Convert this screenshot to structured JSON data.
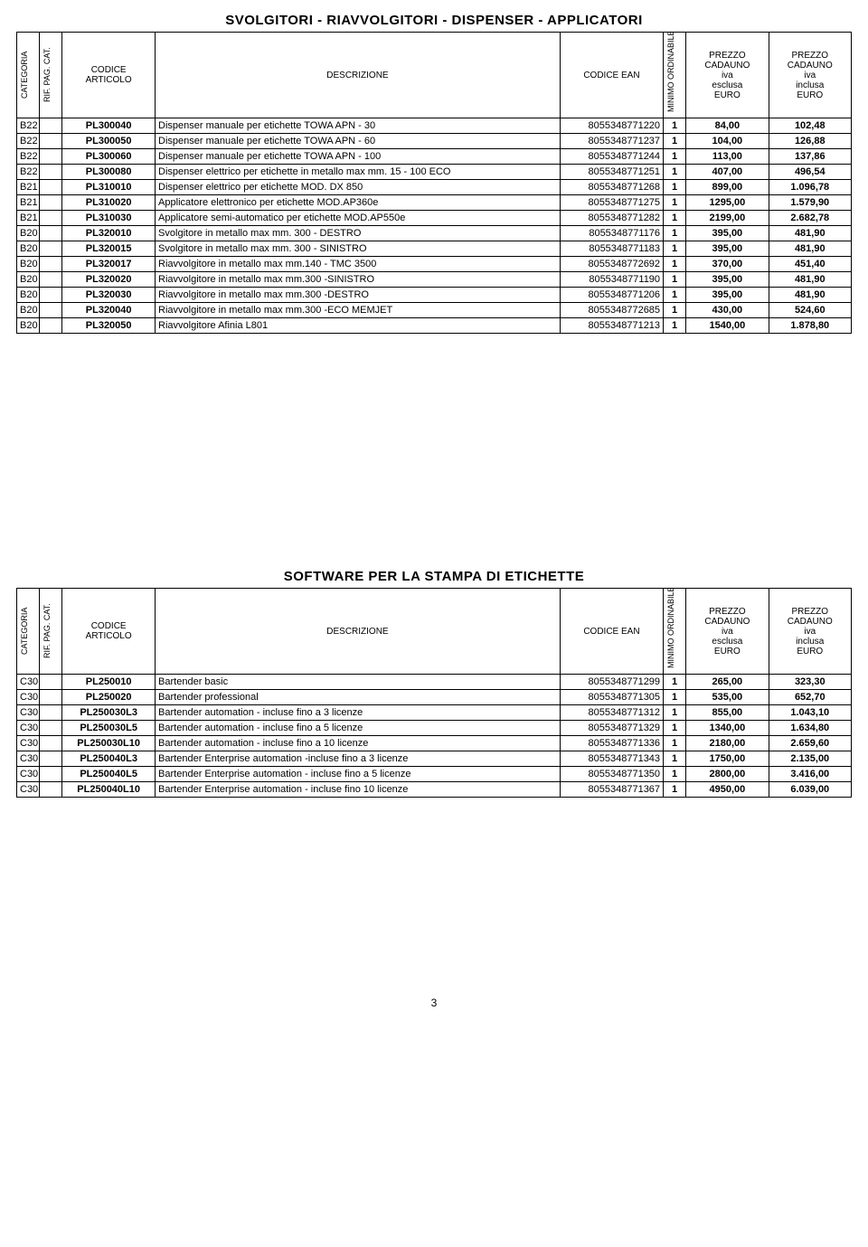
{
  "page_number": "3",
  "headers": {
    "categoria": "CATEGORIA",
    "rif": "RIF. PAG. CAT.",
    "codice_articolo": "CODICE ARTICOLO",
    "descrizione": "DESCRIZIONE",
    "codice_ean": "CODICE EAN",
    "minimo": "MINIMO ORDINABILE",
    "prezzo_esclusa": "PREZZO CADAUNO iva esclusa EURO",
    "prezzo_inclusa": "PREZZO CADAUNO iva inclusa EURO"
  },
  "tables": [
    {
      "title": "SVOLGITORI - RIAVVOLGITORI - DISPENSER - APPLICATORI",
      "rows": [
        {
          "cat": "B22",
          "code": "PL300040",
          "desc": "Dispenser manuale per etichette TOWA APN - 30",
          "ean": "8055348771220",
          "min": "1",
          "pe": "84,00",
          "pi": "102,48"
        },
        {
          "cat": "B22",
          "code": "PL300050",
          "desc": "Dispenser manuale per etichette TOWA APN - 60",
          "ean": "8055348771237",
          "min": "1",
          "pe": "104,00",
          "pi": "126,88"
        },
        {
          "cat": "B22",
          "code": "PL300060",
          "desc": "Dispenser manuale per etichette TOWA APN - 100",
          "ean": "8055348771244",
          "min": "1",
          "pe": "113,00",
          "pi": "137,86"
        },
        {
          "cat": "B22",
          "code": "PL300080",
          "desc": "Dispenser elettrico per etichette in metallo max mm. 15 - 100 ECO",
          "ean": "8055348771251",
          "min": "1",
          "pe": "407,00",
          "pi": "496,54"
        },
        {
          "cat": "B21",
          "code": "PL310010",
          "desc": "Dispenser elettrico per etichette MOD. DX 850",
          "ean": "8055348771268",
          "min": "1",
          "pe": "899,00",
          "pi": "1.096,78"
        },
        {
          "cat": "B21",
          "code": "PL310020",
          "desc": "Applicatore elettronico per etichette  MOD.AP360e",
          "ean": "8055348771275",
          "min": "1",
          "pe": "1295,00",
          "pi": "1.579,90"
        },
        {
          "cat": "B21",
          "code": "PL310030",
          "desc": "Applicatore semi-automatico per etichette MOD.AP550e",
          "ean": "8055348771282",
          "min": "1",
          "pe": "2199,00",
          "pi": "2.682,78"
        },
        {
          "cat": "B20",
          "code": "PL320010",
          "desc": "Svolgitore in metallo max mm. 300 - DESTRO",
          "ean": "8055348771176",
          "min": "1",
          "pe": "395,00",
          "pi": "481,90"
        },
        {
          "cat": "B20",
          "code": "PL320015",
          "desc": "Svolgitore in metallo max mm. 300 - SINISTRO",
          "ean": "8055348771183",
          "min": "1",
          "pe": "395,00",
          "pi": "481,90"
        },
        {
          "cat": "B20",
          "code": "PL320017",
          "desc": "Riavvolgitore in metallo max mm.140 - TMC 3500",
          "ean": "8055348772692",
          "min": "1",
          "pe": "370,00",
          "pi": "451,40"
        },
        {
          "cat": "B20",
          "code": "PL320020",
          "desc": "Riavvolgitore in metallo max mm.300 -SINISTRO",
          "ean": "8055348771190",
          "min": "1",
          "pe": "395,00",
          "pi": "481,90"
        },
        {
          "cat": "B20",
          "code": "PL320030",
          "desc": "Riavvolgitore in metallo max mm.300 -DESTRO",
          "ean": "8055348771206",
          "min": "1",
          "pe": "395,00",
          "pi": "481,90"
        },
        {
          "cat": "B20",
          "code": "PL320040",
          "desc": "Riavvolgitore in metallo max mm.300 -ECO MEMJET",
          "ean": "8055348772685",
          "min": "1",
          "pe": "430,00",
          "pi": "524,60"
        },
        {
          "cat": "B20",
          "code": "PL320050",
          "desc": "Riavvolgitore Afinia L801",
          "ean": "8055348771213",
          "min": "1",
          "pe": "1540,00",
          "pi": "1.878,80"
        }
      ]
    },
    {
      "title": "SOFTWARE PER LA STAMPA DI ETICHETTE",
      "rows": [
        {
          "cat": "C30",
          "code": "PL250010",
          "desc": "Bartender basic",
          "ean": "8055348771299",
          "min": "1",
          "pe": "265,00",
          "pi": "323,30"
        },
        {
          "cat": "C30",
          "code": "PL250020",
          "desc": "Bartender professional",
          "ean": "8055348771305",
          "min": "1",
          "pe": "535,00",
          "pi": "652,70"
        },
        {
          "cat": "C30",
          "code": "PL250030L3",
          "desc": "Bartender automation - incluse fino a 3 licenze",
          "ean": "8055348771312",
          "min": "1",
          "pe": "855,00",
          "pi": "1.043,10"
        },
        {
          "cat": "C30",
          "code": "PL250030L5",
          "desc": "Bartender automation - incluse fino a 5 licenze",
          "ean": "8055348771329",
          "min": "1",
          "pe": "1340,00",
          "pi": "1.634,80"
        },
        {
          "cat": "C30",
          "code": "PL250030L10",
          "desc": "Bartender automation - incluse fino a 10 licenze",
          "ean": "8055348771336",
          "min": "1",
          "pe": "2180,00",
          "pi": "2.659,60"
        },
        {
          "cat": "C30",
          "code": "PL250040L3",
          "desc": "Bartender Enterprise automation -incluse fino a 3 licenze",
          "ean": "8055348771343",
          "min": "1",
          "pe": "1750,00",
          "pi": "2.135,00"
        },
        {
          "cat": "C30",
          "code": "PL250040L5",
          "desc": "Bartender Enterprise automation  - incluse fino a 5 licenze",
          "ean": "8055348771350",
          "min": "1",
          "pe": "2800,00",
          "pi": "3.416,00"
        },
        {
          "cat": "C30",
          "code": "PL250040L10",
          "desc": "Bartender Enterprise automation  - incluse fino 10 licenze",
          "ean": "8055348771367",
          "min": "1",
          "pe": "4950,00",
          "pi": "6.039,00"
        }
      ]
    }
  ]
}
